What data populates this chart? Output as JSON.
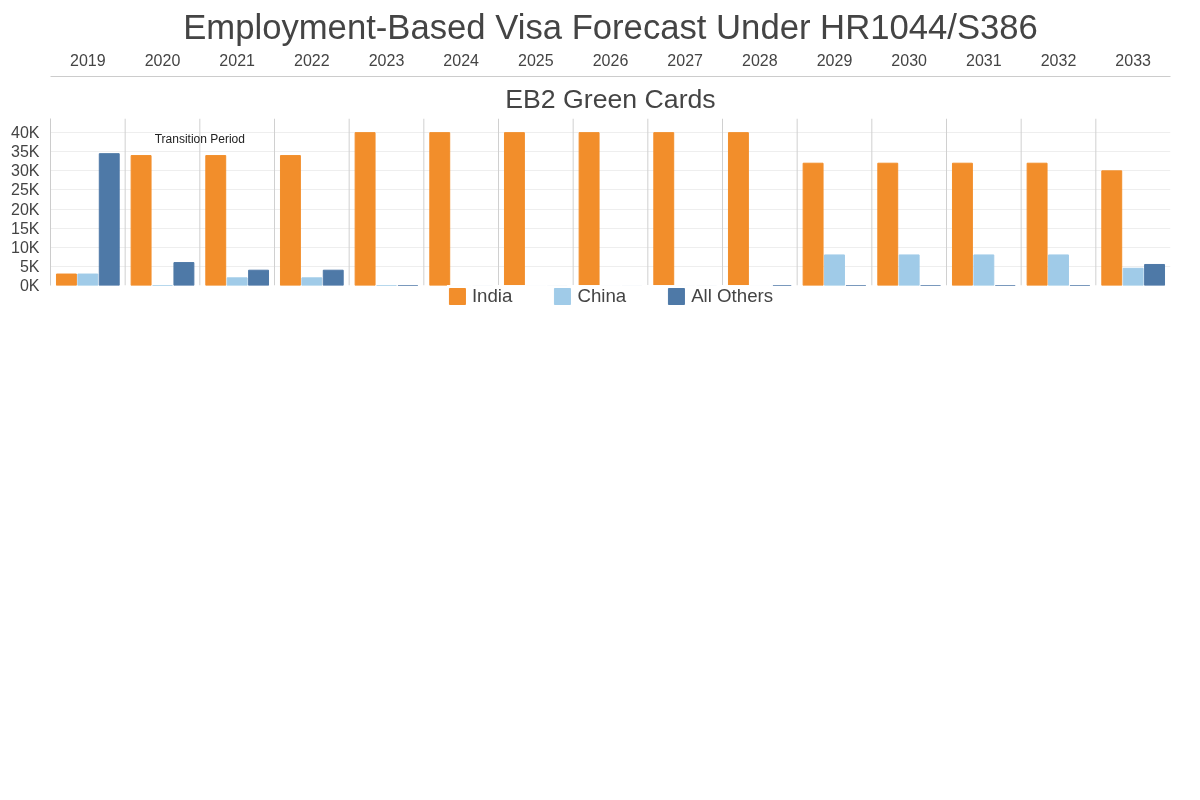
{
  "chart_data": {
    "type": "bar",
    "title": "Employment-Based Visa Forecast Under HR1044/S386",
    "subtitle": "EB2 Green Cards",
    "categories": [
      "2019",
      "2020",
      "2021",
      "2022",
      "2023",
      "2024",
      "2025",
      "2026",
      "2027",
      "2028",
      "2029",
      "2030",
      "2031",
      "2032",
      "2033"
    ],
    "series": [
      {
        "name": "India",
        "color": "#f28e2b",
        "values": [
          3000,
          34000,
          34000,
          34000,
          40000,
          40000,
          40000,
          40000,
          40000,
          40000,
          32000,
          32000,
          32000,
          32000,
          30000
        ]
      },
      {
        "name": "China",
        "color": "#a0cbe8",
        "values": [
          3000,
          0,
          2000,
          2000,
          0,
          0,
          0,
          0,
          0,
          0,
          8000,
          8000,
          8000,
          8000,
          4500
        ]
      },
      {
        "name": "All Others",
        "color": "#4e79a7",
        "values": [
          34500,
          6000,
          4000,
          4000,
          0,
          0,
          0,
          0,
          0,
          0,
          0,
          0,
          0,
          0,
          5500
        ]
      }
    ],
    "annotations": [
      "Transition Period"
    ],
    "ylim": [
      0,
      43700
    ],
    "yticks": [
      {
        "value": 0,
        "label": "0K"
      },
      {
        "value": 5000,
        "label": "5K"
      },
      {
        "value": 10000,
        "label": "10K"
      },
      {
        "value": 15000,
        "label": "15K"
      },
      {
        "value": 20000,
        "label": "20K"
      },
      {
        "value": 25000,
        "label": "25K"
      },
      {
        "value": 30000,
        "label": "30K"
      },
      {
        "value": 35000,
        "label": "35K"
      },
      {
        "value": 40000,
        "label": "40K"
      }
    ],
    "grid": "y",
    "legend": "bottom"
  }
}
